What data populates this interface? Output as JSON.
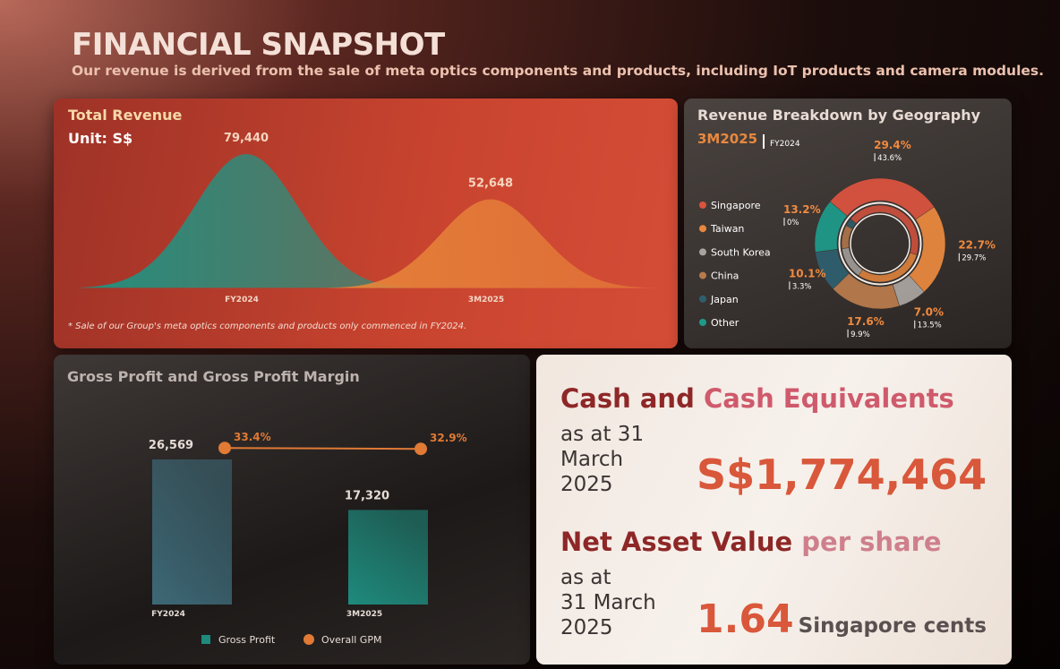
{
  "header": {
    "title": "FINANCIAL SNAPSHOT",
    "subtitle": "Our revenue is derived from the sale of meta optics components and products, including IoT products and camera modules."
  },
  "chart_data": [
    {
      "type": "area",
      "title": "Total Revenue",
      "subtitle": "Unit: S$",
      "categories": [
        "FY2024",
        "3M2025"
      ],
      "values": [
        79440,
        52648
      ],
      "value_labels": [
        "79,440",
        "52,648"
      ],
      "colors": [
        "#1f9483",
        "#e8853a"
      ],
      "footnote": "*  Sale of our Group's meta optics components and products only commenced in FY2024."
    },
    {
      "type": "donut",
      "title": "Revenue Breakdown by Geography",
      "categories": [
        "Singapore",
        "Taiwan",
        "South Korea",
        "China",
        "Japan",
        "Other"
      ],
      "colors": [
        "#d9533f",
        "#e8883e",
        "#a8a39e",
        "#b87a4b",
        "#2f5f6e",
        "#1e9a8a"
      ],
      "series": [
        {
          "name": "3M2025",
          "values": [
            29.4,
            22.7,
            7.0,
            17.6,
            10.1,
            13.2
          ],
          "value_labels": [
            "29.4%",
            "22.7%",
            "7.0%",
            "17.6%",
            "10.1%",
            "13.2%"
          ]
        },
        {
          "name": "FY2024",
          "values": [
            43.6,
            29.7,
            13.5,
            9.9,
            3.3,
            0
          ],
          "value_labels": [
            "43.6%",
            "29.7%",
            "13.5%",
            "9.9%",
            "3.3%",
            "0%"
          ]
        }
      ]
    },
    {
      "type": "bar_line",
      "title": "Gross Profit and Gross Profit Margin",
      "categories": [
        "FY2024",
        "3M2025"
      ],
      "series": [
        {
          "name": "Gross Profit",
          "color": "#1e8a7c",
          "values": [
            26569,
            17320
          ],
          "value_labels": [
            "26,569",
            "17,320"
          ]
        },
        {
          "name": "Overall GPM",
          "color": "#e07a35",
          "axis": "y2",
          "values": [
            33.4,
            32.9
          ],
          "value_labels": [
            "33.4%",
            "32.9%"
          ]
        }
      ]
    }
  ],
  "cash": {
    "heading": [
      "Cash and",
      "Cash Equivalents"
    ],
    "date": [
      "as at 31",
      "March",
      "2025"
    ],
    "value": "S$1,774,464"
  },
  "nav": {
    "heading": [
      "Net Asset Value",
      "per share"
    ],
    "date": [
      "as at",
      "31 March",
      "2025"
    ],
    "value": "1.64",
    "unit": "Singapore cents"
  }
}
